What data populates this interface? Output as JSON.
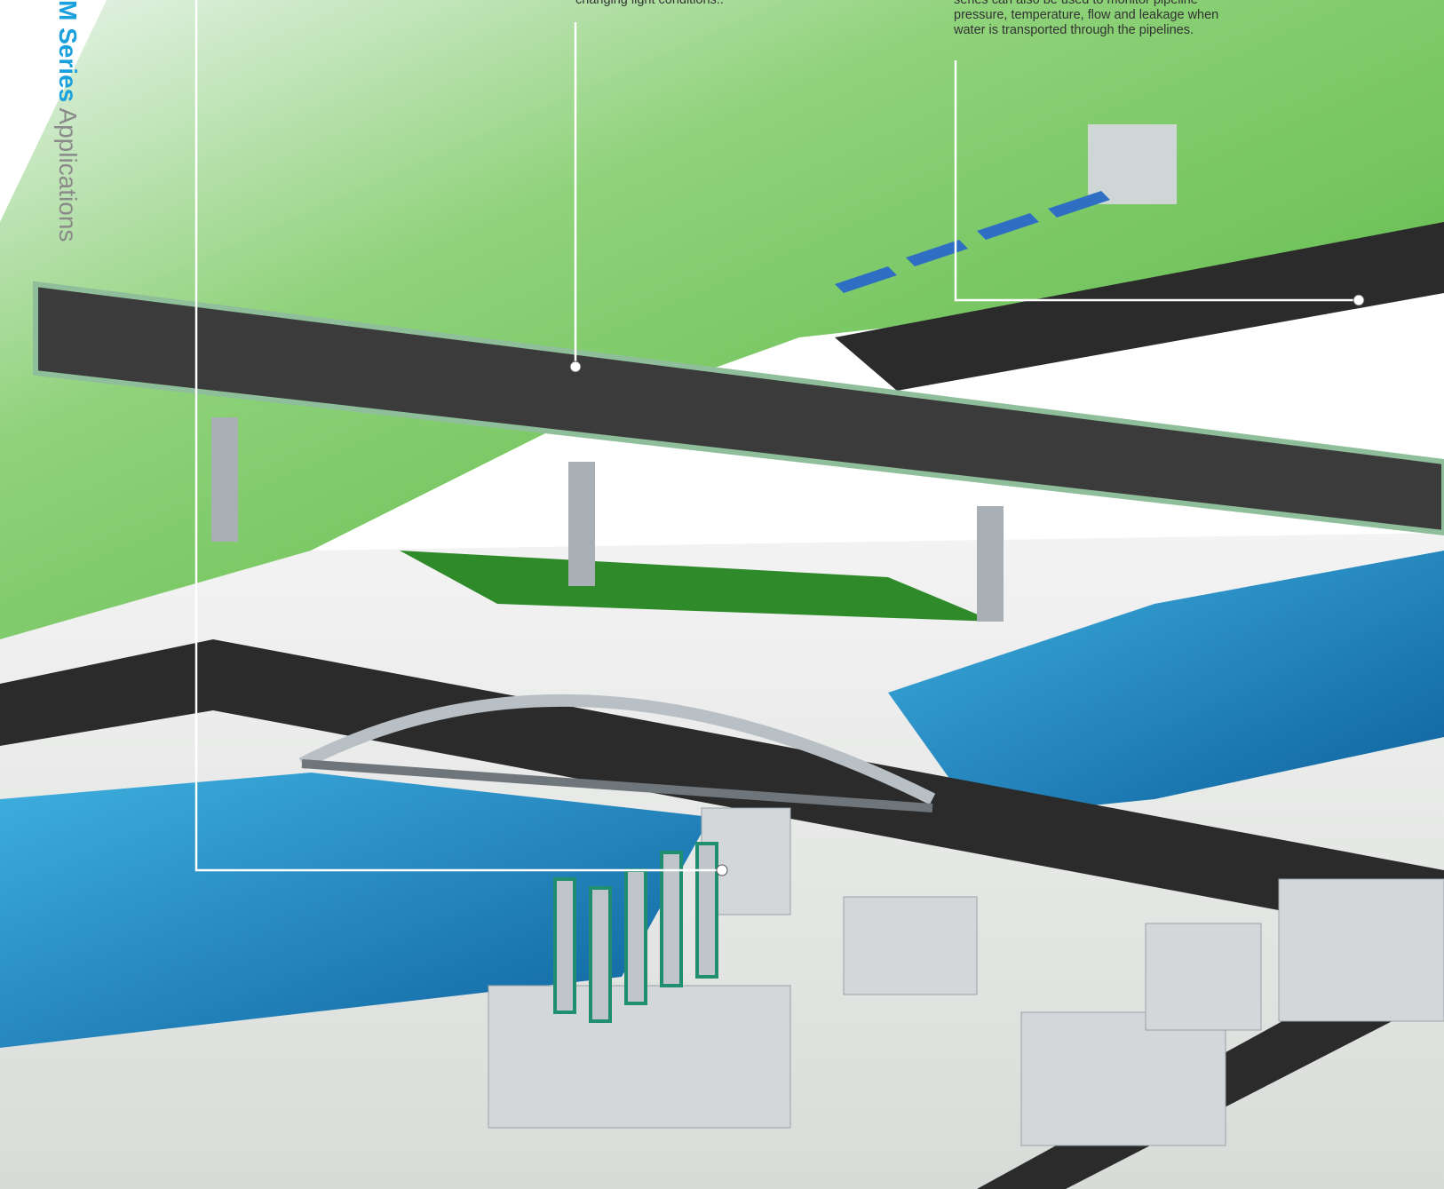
{
  "sidebar": {
    "title": "M Series",
    "subtitle": "Applications"
  },
  "callouts": [
    {
      "lines": [
        "changing light conditions.."
      ]
    },
    {
      "lines": [
        "series can also be used to monitor pipeline",
        "pressure, temperature, flow and leakage when",
        "water is transported through the pipelines."
      ]
    }
  ]
}
